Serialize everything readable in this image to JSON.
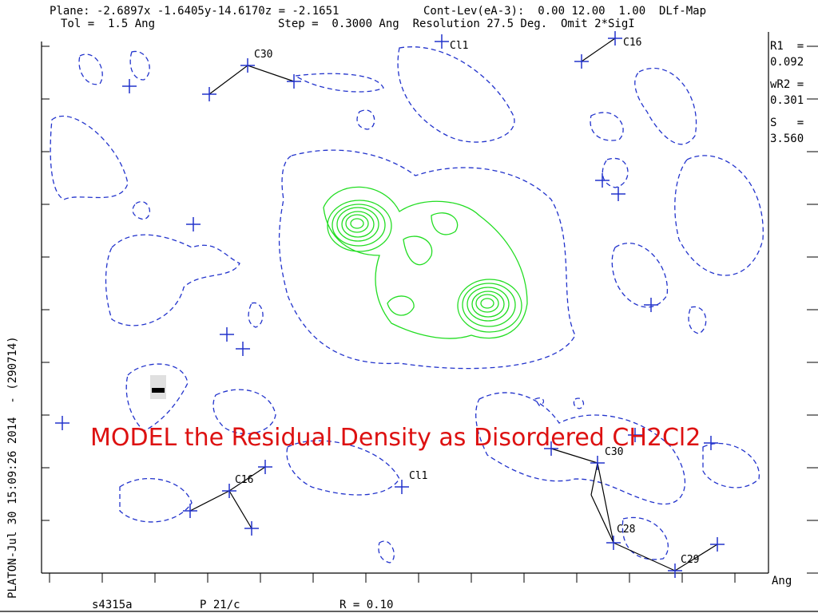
{
  "header": {
    "line1_left": "Plane: -2.6897x -1.6405y-14.6170z = -2.1651",
    "line1_right": "Cont-Lev(eA-3):  0.00 12.00  1.00  DLf-Map",
    "line2_left": "Tol =  1.5 Ang",
    "line2_right": "Step =  0.3000 Ang  Resolution 27.5 Deg.  Omit 2*SigI"
  },
  "side_panel": {
    "r1_label": "R1  =",
    "r1_value": "0.092",
    "wr2_label": "wR2 =",
    "wr2_value": "0.301",
    "s_label": "S   =",
    "s_value": "3.560",
    "unit": "Ang"
  },
  "vertical_label": "PLATON-Jul 30 15:09:26 2014  - (290714)",
  "footer": {
    "name": "s4315a",
    "space_group": "P 21/c",
    "r": "R = 0.10"
  },
  "atoms": [
    "C30",
    "Cl1",
    "C16",
    "C30",
    "C16",
    "Cl1",
    "C28",
    "C29"
  ],
  "annotation": "MODEL the Residual Density as Disordered CH2Cl2"
}
